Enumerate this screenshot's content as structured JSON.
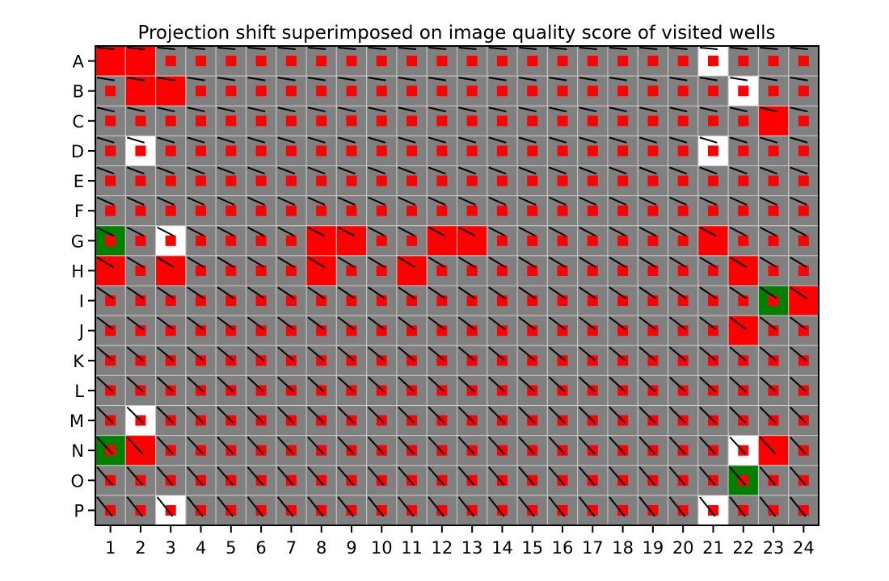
{
  "chart_data": {
    "type": "heatmap",
    "title": "Projection shift superimposed on image quality score of visited wells",
    "xlabel": "",
    "ylabel": "",
    "rows": [
      "A",
      "B",
      "C",
      "D",
      "E",
      "F",
      "G",
      "H",
      "I",
      "J",
      "K",
      "L",
      "M",
      "N",
      "O",
      "P"
    ],
    "columns": [
      "1",
      "2",
      "3",
      "4",
      "5",
      "6",
      "7",
      "8",
      "9",
      "10",
      "11",
      "12",
      "13",
      "14",
      "15",
      "16",
      "17",
      "18",
      "19",
      "20",
      "21",
      "22",
      "23",
      "24"
    ],
    "default_score": "low",
    "score_colors": {
      "low": "#808080",
      "high": "#ff0000",
      "good": "#008000",
      "missing": "#ffffff"
    },
    "high_score_wells": [
      "A1",
      "A2",
      "B2",
      "B3",
      "C23",
      "G8",
      "G9",
      "G12",
      "G13",
      "G21",
      "H1",
      "H3",
      "H8",
      "H11",
      "H22",
      "I24",
      "J22",
      "N2",
      "N23"
    ],
    "good_score_wells": [
      "G1",
      "I23",
      "N1",
      "O22"
    ],
    "missing_wells": [
      "A21",
      "B22",
      "D2",
      "D21",
      "G3",
      "M2",
      "N22",
      "P3",
      "P21"
    ],
    "marker_color": "#ff0000",
    "shift_line_color": "#000000",
    "shift_vector_trend": "short lines pointing right/slightly down in top rows, steeper toward bottom rows"
  }
}
